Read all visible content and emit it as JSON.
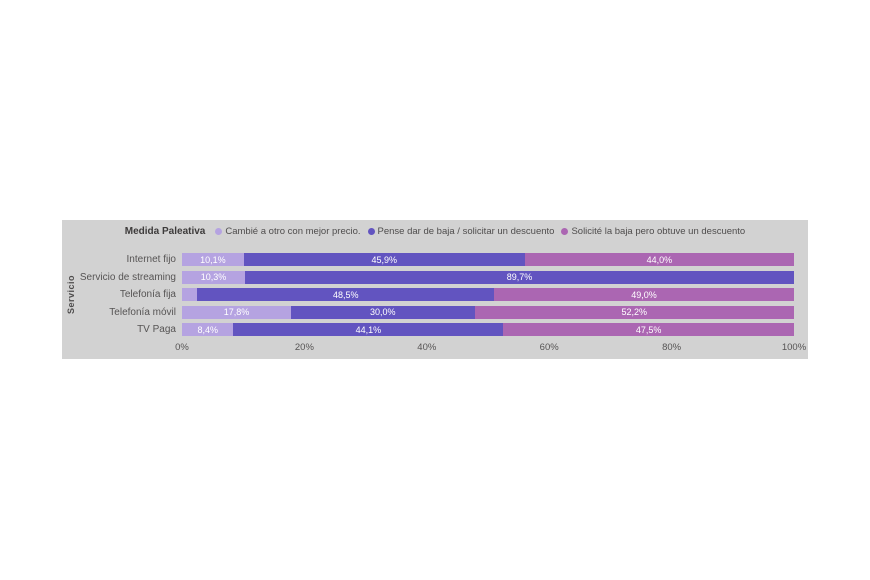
{
  "colors": {
    "panel_bg": "#d2d2d2",
    "axis_text": "#565454",
    "value_label": "#ffffff",
    "series1": "#b5a3e1",
    "series2": "#6254c0",
    "series3": "#ab66b2"
  },
  "chart_data": {
    "type": "bar",
    "orientation": "horizontal-stacked",
    "legend_title": "Medida Paleativa",
    "legend_position": "top",
    "ylabel": "Servicio",
    "xlabel": "",
    "xlim": [
      0,
      100
    ],
    "x_ticks": [
      "0%",
      "20%",
      "40%",
      "60%",
      "80%",
      "100%"
    ],
    "grid": false,
    "categories": [
      "Internet fijo",
      "Servicio de streaming",
      "Telefonía fija",
      "Telefonía móvil",
      "TV Paga"
    ],
    "series": [
      {
        "name": "Cambié a otro con mejor precio.",
        "color": "#b5a3e1",
        "values": [
          10.1,
          10.3,
          2.5,
          17.8,
          8.4
        ],
        "labels": [
          "10,1%",
          "10,3%",
          "",
          "17,8%",
          "8,4%"
        ]
      },
      {
        "name": "Pense dar de baja / solicitar un descuento",
        "color": "#6254c0",
        "values": [
          45.9,
          89.7,
          48.5,
          30.0,
          44.1
        ],
        "labels": [
          "45,9%",
          "89,7%",
          "48,5%",
          "30,0%",
          "44,1%"
        ]
      },
      {
        "name": "Solicité la baja pero obtuve un descuento",
        "color": "#ab66b2",
        "values": [
          44.0,
          0,
          49.0,
          52.2,
          47.5
        ],
        "labels": [
          "44,0%",
          "",
          "49,0%",
          "52,2%",
          "47,5%"
        ]
      }
    ]
  }
}
